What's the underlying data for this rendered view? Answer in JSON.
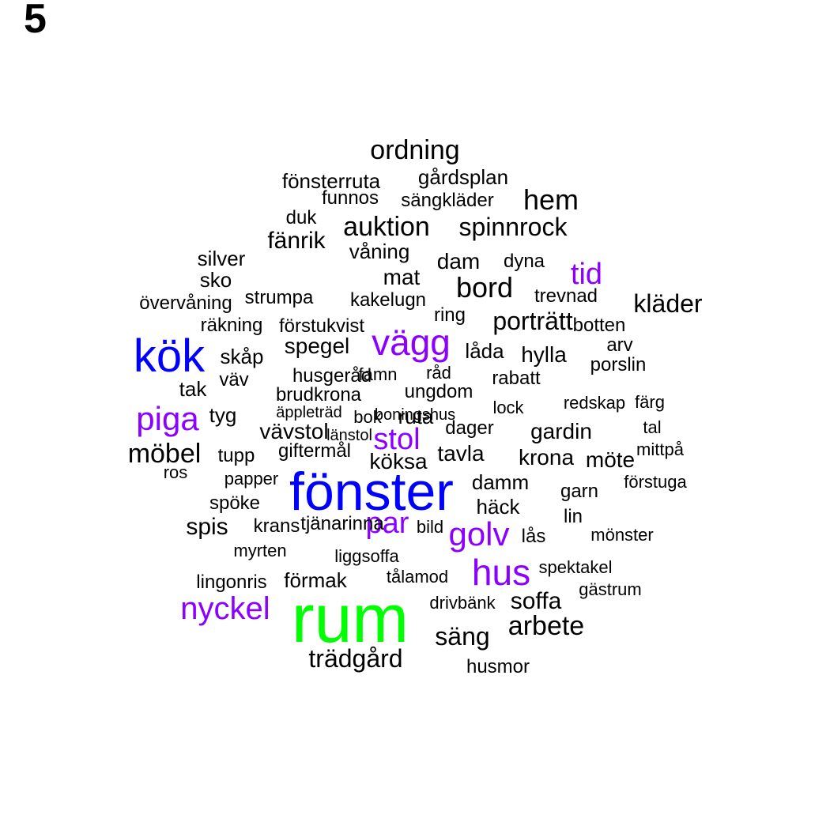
{
  "panel_label": "5",
  "chart_data": {
    "type": "wordcloud",
    "colors": {
      "blue": "#0000ff",
      "purple": "#8b00ff",
      "green": "#00ff00",
      "black": "#000000"
    },
    "words": [
      {
        "text": "rum",
        "weight": 10,
        "color": "green"
      },
      {
        "text": "fönster",
        "weight": 8,
        "color": "blue"
      },
      {
        "text": "kök",
        "weight": 7,
        "color": "blue"
      },
      {
        "text": "hus",
        "weight": 5,
        "color": "purple"
      },
      {
        "text": "vägg",
        "weight": 5,
        "color": "purple"
      },
      {
        "text": "piga",
        "weight": 5,
        "color": "purple"
      },
      {
        "text": "golv",
        "weight": 5,
        "color": "purple"
      },
      {
        "text": "nyckel",
        "weight": 4,
        "color": "purple"
      },
      {
        "text": "par",
        "weight": 4,
        "color": "purple"
      },
      {
        "text": "stol",
        "weight": 4,
        "color": "purple"
      },
      {
        "text": "tid",
        "weight": 4,
        "color": "purple"
      },
      {
        "text": "ordning",
        "weight": 3,
        "color": "black"
      },
      {
        "text": "hem",
        "weight": 3,
        "color": "black"
      },
      {
        "text": "bord",
        "weight": 3,
        "color": "black"
      },
      {
        "text": "möbel",
        "weight": 3,
        "color": "black"
      },
      {
        "text": "trädgård",
        "weight": 3,
        "color": "black"
      },
      {
        "text": "arbete",
        "weight": 3,
        "color": "black"
      },
      {
        "text": "säng",
        "weight": 3,
        "color": "black"
      },
      {
        "text": "auktion",
        "weight": 3,
        "color": "black"
      },
      {
        "text": "spinnrock",
        "weight": 3,
        "color": "black"
      },
      {
        "text": "kläder",
        "weight": 3,
        "color": "black"
      },
      {
        "text": "porträtt",
        "weight": 3,
        "color": "black"
      },
      {
        "text": "fänrik",
        "weight": 2,
        "color": "black"
      },
      {
        "text": "dam",
        "weight": 2,
        "color": "black"
      },
      {
        "text": "spegel",
        "weight": 2,
        "color": "black"
      },
      {
        "text": "vävstol",
        "weight": 2,
        "color": "black"
      },
      {
        "text": "spis",
        "weight": 2,
        "color": "black"
      },
      {
        "text": "soffa",
        "weight": 2,
        "color": "black"
      },
      {
        "text": "mat",
        "weight": 2,
        "color": "black"
      },
      {
        "text": "hylla",
        "weight": 2,
        "color": "black"
      },
      {
        "text": "låda",
        "weight": 2,
        "color": "black"
      },
      {
        "text": "gardin",
        "weight": 2,
        "color": "black"
      },
      {
        "text": "krona",
        "weight": 2,
        "color": "black"
      },
      {
        "text": "möte",
        "weight": 2,
        "color": "black"
      },
      {
        "text": "köksa",
        "weight": 2,
        "color": "black"
      },
      {
        "text": "tavla",
        "weight": 2,
        "color": "black"
      },
      {
        "text": "damm",
        "weight": 2,
        "color": "black"
      },
      {
        "text": "häck",
        "weight": 2,
        "color": "black"
      },
      {
        "text": "förmak",
        "weight": 2,
        "color": "black"
      },
      {
        "text": "sko",
        "weight": 2,
        "color": "black"
      },
      {
        "text": "silver",
        "weight": 2,
        "color": "black"
      },
      {
        "text": "skåp",
        "weight": 2,
        "color": "black"
      },
      {
        "text": "tak",
        "weight": 2,
        "color": "black"
      },
      {
        "text": "tyg",
        "weight": 2,
        "color": "black"
      },
      {
        "text": "våning",
        "weight": 2,
        "color": "black"
      },
      {
        "text": "ring",
        "weight": 2,
        "color": "black"
      },
      {
        "text": "ruta",
        "weight": 2,
        "color": "black"
      },
      {
        "text": "dager",
        "weight": 2,
        "color": "black"
      },
      {
        "text": "lås",
        "weight": 2,
        "color": "black"
      },
      {
        "text": "ungdom",
        "weight": 2,
        "color": "black"
      },
      {
        "text": "brudkrona",
        "weight": 2,
        "color": "black"
      },
      {
        "text": "krans",
        "weight": 2,
        "color": "black"
      },
      {
        "text": "tupp",
        "weight": 2,
        "color": "black"
      },
      {
        "text": "giftermål",
        "weight": 2,
        "color": "black"
      },
      {
        "text": "väv",
        "weight": 2,
        "color": "black"
      },
      {
        "text": "trevnad",
        "weight": 1,
        "color": "black"
      },
      {
        "text": "fönsterruta",
        "weight": 1,
        "color": "black"
      },
      {
        "text": "gårdsplan",
        "weight": 1,
        "color": "black"
      },
      {
        "text": "funnos",
        "weight": 1,
        "color": "black"
      },
      {
        "text": "sängkläder",
        "weight": 1,
        "color": "black"
      },
      {
        "text": "duk",
        "weight": 1,
        "color": "black"
      },
      {
        "text": "dyna",
        "weight": 1,
        "color": "black"
      },
      {
        "text": "övervåning",
        "weight": 1,
        "color": "black"
      },
      {
        "text": "strumpa",
        "weight": 1,
        "color": "black"
      },
      {
        "text": "kakelugn",
        "weight": 1,
        "color": "black"
      },
      {
        "text": "räkning",
        "weight": 1,
        "color": "black"
      },
      {
        "text": "förstukvist",
        "weight": 1,
        "color": "black"
      },
      {
        "text": "botten",
        "weight": 1,
        "color": "black"
      },
      {
        "text": "arv",
        "weight": 1,
        "color": "black"
      },
      {
        "text": "porslin",
        "weight": 1,
        "color": "black"
      },
      {
        "text": "husgeråd",
        "weight": 1,
        "color": "black"
      },
      {
        "text": "famn",
        "weight": 1,
        "color": "black"
      },
      {
        "text": "råd",
        "weight": 1,
        "color": "black"
      },
      {
        "text": "rabatt",
        "weight": 1,
        "color": "black"
      },
      {
        "text": "äppleträd",
        "weight": 1,
        "color": "black"
      },
      {
        "text": "bok",
        "weight": 1,
        "color": "black"
      },
      {
        "text": "lock",
        "weight": 1,
        "color": "black"
      },
      {
        "text": "redskap",
        "weight": 1,
        "color": "black"
      },
      {
        "text": "färg",
        "weight": 1,
        "color": "black"
      },
      {
        "text": "länstol",
        "weight": 1,
        "color": "black"
      },
      {
        "text": "tal",
        "weight": 1,
        "color": "black"
      },
      {
        "text": "mittpå",
        "weight": 1,
        "color": "black"
      },
      {
        "text": "ros",
        "weight": 1,
        "color": "black"
      },
      {
        "text": "papper",
        "weight": 1,
        "color": "black"
      },
      {
        "text": "garn",
        "weight": 1,
        "color": "black"
      },
      {
        "text": "förstuga",
        "weight": 1,
        "color": "black"
      },
      {
        "text": "spöke",
        "weight": 1,
        "color": "black"
      },
      {
        "text": "tjänarinna",
        "weight": 1,
        "color": "black"
      },
      {
        "text": "bild",
        "weight": 1,
        "color": "black"
      },
      {
        "text": "lin",
        "weight": 1,
        "color": "black"
      },
      {
        "text": "mönster",
        "weight": 1,
        "color": "black"
      },
      {
        "text": "myrten",
        "weight": 1,
        "color": "black"
      },
      {
        "text": "liggsoffa",
        "weight": 1,
        "color": "black"
      },
      {
        "text": "spektakel",
        "weight": 1,
        "color": "black"
      },
      {
        "text": "tålamod",
        "weight": 1,
        "color": "black"
      },
      {
        "text": "lingonris",
        "weight": 1,
        "color": "black"
      },
      {
        "text": "gästrum",
        "weight": 1,
        "color": "black"
      },
      {
        "text": "drivbänk",
        "weight": 1,
        "color": "black"
      },
      {
        "text": "husmor",
        "weight": 1,
        "color": "black"
      },
      {
        "text": "boningshus",
        "weight": 1,
        "color": "black"
      }
    ]
  }
}
